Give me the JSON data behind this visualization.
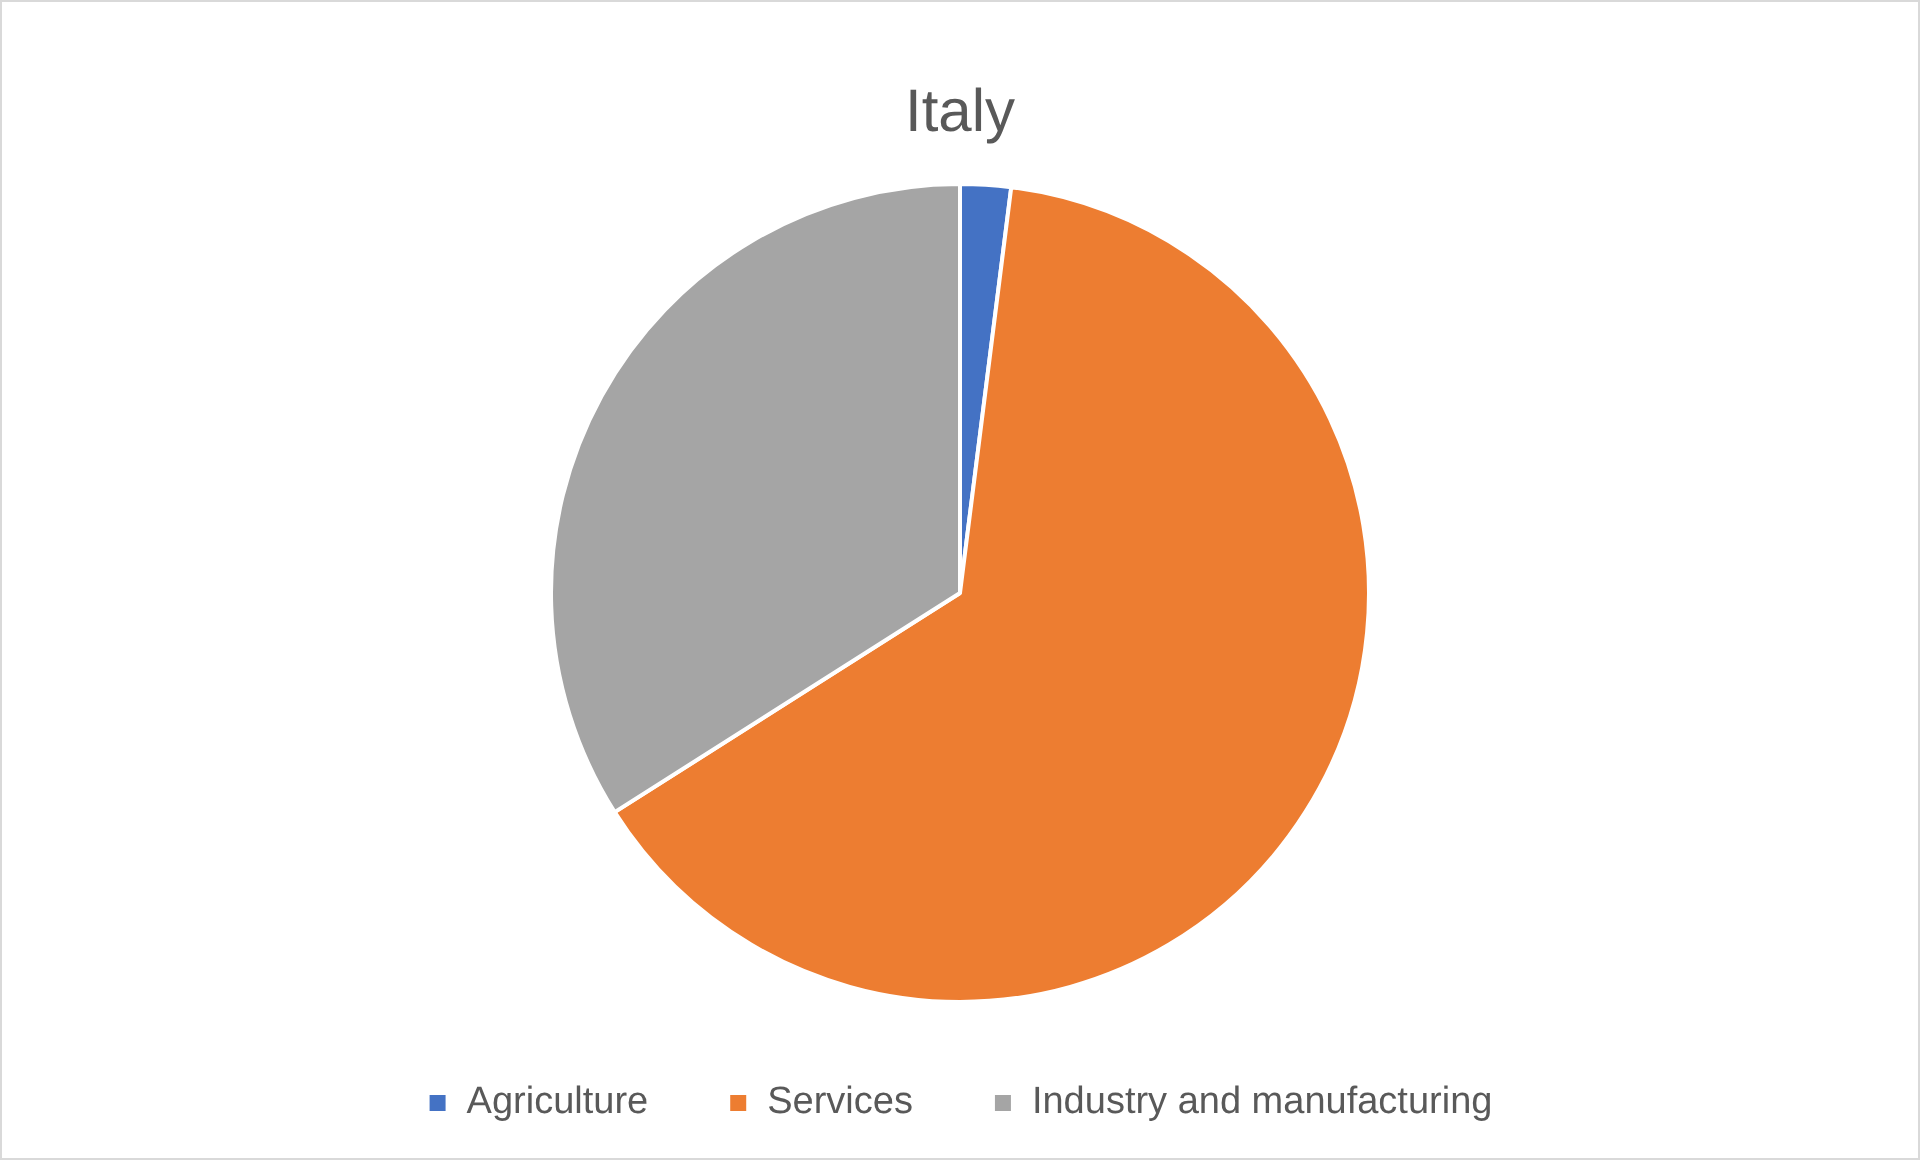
{
  "chart_data": {
    "type": "pie",
    "title": "Italy",
    "categories": [
      "Agriculture",
      "Services",
      "Industry and manufacturing"
    ],
    "values": [
      2,
      64,
      34
    ],
    "colors": [
      "#4472c4",
      "#ed7d31",
      "#a5a5a5"
    ],
    "legend": "bottom"
  }
}
